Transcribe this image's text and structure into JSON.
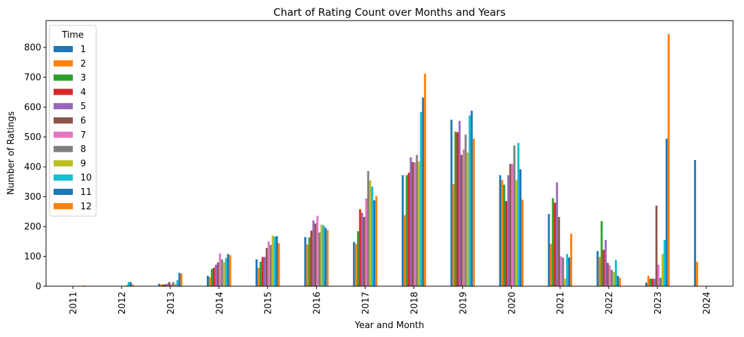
{
  "chart_data": {
    "type": "bar",
    "title": "Chart of Rating Count over Months and Years",
    "xlabel": "Year and Month",
    "ylabel": "Number of Ratings",
    "ylim": [
      0,
      890
    ],
    "yticks": [
      0,
      100,
      200,
      300,
      400,
      500,
      600,
      700,
      800
    ],
    "grid": false,
    "legend": {
      "title": "Time",
      "placement": "top-left"
    },
    "categories": [
      "2011",
      "2012",
      "2013",
      "2014",
      "2015",
      "2016",
      "2017",
      "2018",
      "2019",
      "2020",
      "2021",
      "2022",
      "2023",
      "2024"
    ],
    "series": [
      {
        "name": "1",
        "color": "#1f77b4",
        "values": [
          0,
          0,
          8,
          35,
          90,
          165,
          148,
          372,
          558,
          372,
          242,
          118,
          12,
          423
        ]
      },
      {
        "name": "2",
        "color": "#ff7f0e",
        "values": [
          0,
          0,
          6,
          30,
          62,
          140,
          142,
          238,
          342,
          356,
          142,
          98,
          35,
          82
        ]
      },
      {
        "name": "3",
        "color": "#2ca02c",
        "values": [
          0,
          0,
          6,
          58,
          82,
          164,
          184,
          372,
          518,
          340,
          295,
          218,
          25,
          0
        ]
      },
      {
        "name": "4",
        "color": "#d62728",
        "values": [
          0,
          0,
          6,
          62,
          98,
          186,
          258,
          380,
          516,
          285,
          280,
          122,
          25,
          0
        ]
      },
      {
        "name": "5",
        "color": "#9467bd",
        "values": [
          0,
          0,
          8,
          72,
          98,
          220,
          246,
          432,
          554,
          372,
          348,
          155,
          25,
          0
        ]
      },
      {
        "name": "6",
        "color": "#8c564b",
        "values": [
          0,
          0,
          14,
          80,
          128,
          210,
          232,
          416,
          440,
          410,
          232,
          78,
          270,
          0
        ]
      },
      {
        "name": "7",
        "color": "#e377c2",
        "values": [
          0,
          0,
          8,
          110,
          150,
          236,
          294,
          415,
          458,
          410,
          100,
          70,
          72,
          0
        ]
      },
      {
        "name": "8",
        "color": "#7f7f7f",
        "values": [
          0,
          0,
          14,
          90,
          138,
          180,
          386,
          440,
          508,
          472,
          96,
          55,
          28,
          0
        ]
      },
      {
        "name": "9",
        "color": "#bcbd22",
        "values": [
          0,
          4,
          8,
          80,
          170,
          206,
          354,
          418,
          448,
          356,
          25,
          48,
          108,
          0
        ]
      },
      {
        "name": "10",
        "color": "#17becf",
        "values": [
          0,
          14,
          20,
          95,
          166,
          204,
          334,
          584,
          572,
          480,
          108,
          88,
          155,
          0
        ]
      },
      {
        "name": "11",
        "color": "#1f77b4",
        "values": [
          0,
          14,
          45,
          108,
          168,
          196,
          288,
          632,
          588,
          392,
          96,
          35,
          494,
          0
        ]
      },
      {
        "name": "12",
        "color": "#ff7f0e",
        "values": [
          3,
          6,
          42,
          104,
          144,
          188,
          302,
          712,
          494,
          290,
          176,
          28,
          845,
          0
        ]
      }
    ]
  }
}
